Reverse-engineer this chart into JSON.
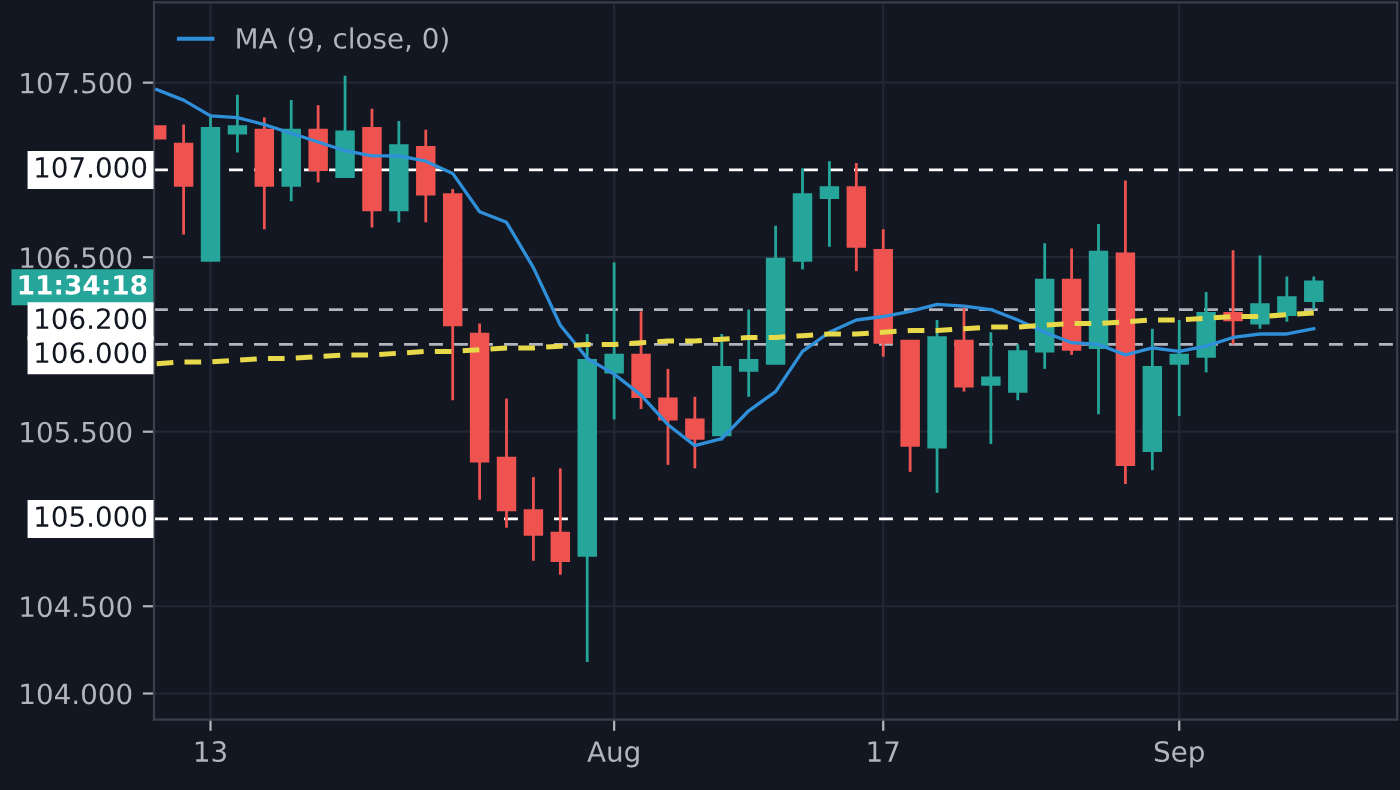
{
  "chart_data": {
    "type": "candlestick",
    "categories": [
      null,
      null,
      "13",
      null,
      null,
      null,
      null,
      null,
      null,
      null,
      null,
      null,
      null,
      null,
      null,
      null,
      null,
      "Aug",
      null,
      null,
      null,
      null,
      null,
      null,
      null,
      null,
      null,
      "17",
      null,
      null,
      null,
      null,
      null,
      null,
      null,
      null,
      null,
      null,
      "Sep",
      null,
      null,
      null,
      null,
      null
    ],
    "ohlc": [
      [
        107.25,
        107.25,
        107.18,
        107.18
      ],
      [
        107.15,
        107.26,
        106.63,
        106.91
      ],
      [
        106.48,
        107.32,
        106.48,
        107.24
      ],
      [
        107.21,
        107.43,
        107.1,
        107.25
      ],
      [
        107.23,
        107.3,
        106.66,
        106.91
      ],
      [
        106.91,
        107.4,
        106.82,
        107.23
      ],
      [
        107.23,
        107.37,
        106.93,
        107.0
      ],
      [
        106.96,
        107.54,
        106.96,
        107.22
      ],
      [
        107.24,
        107.35,
        106.67,
        106.77
      ],
      [
        106.77,
        107.28,
        106.7,
        107.14
      ],
      [
        107.13,
        107.23,
        106.7,
        106.86
      ],
      [
        106.86,
        106.89,
        105.68,
        106.11
      ],
      [
        106.06,
        106.12,
        105.11,
        105.33
      ],
      [
        105.35,
        105.69,
        104.95,
        105.05
      ],
      [
        105.05,
        105.24,
        104.76,
        104.91
      ],
      [
        104.92,
        105.29,
        104.68,
        104.76
      ],
      [
        104.79,
        106.06,
        104.18,
        105.91
      ],
      [
        105.84,
        106.47,
        105.57,
        105.94
      ],
      [
        105.94,
        106.19,
        105.63,
        105.7
      ],
      [
        105.69,
        105.86,
        105.31,
        105.57
      ],
      [
        105.57,
        105.7,
        105.29,
        105.46
      ],
      [
        105.48,
        106.06,
        105.45,
        105.87
      ],
      [
        105.85,
        106.2,
        105.7,
        105.91
      ],
      [
        105.89,
        106.68,
        105.89,
        106.49
      ],
      [
        106.48,
        107.01,
        106.43,
        106.86
      ],
      [
        106.84,
        107.05,
        106.56,
        106.9
      ],
      [
        106.9,
        107.04,
        106.42,
        106.56
      ],
      [
        106.54,
        106.66,
        105.93,
        106.01
      ],
      [
        106.02,
        106.02,
        105.27,
        105.42
      ],
      [
        105.41,
        106.14,
        105.15,
        106.04
      ],
      [
        106.02,
        106.21,
        105.73,
        105.76
      ],
      [
        105.77,
        106.07,
        105.43,
        105.81
      ],
      [
        105.73,
        106.0,
        105.68,
        105.96
      ],
      [
        105.96,
        106.58,
        105.86,
        106.37
      ],
      [
        106.37,
        106.55,
        105.94,
        105.97
      ],
      [
        105.98,
        106.69,
        105.6,
        106.53
      ],
      [
        106.52,
        106.94,
        105.2,
        105.31
      ],
      [
        105.39,
        106.09,
        105.28,
        105.87
      ],
      [
        105.89,
        106.14,
        105.59,
        105.94
      ],
      [
        105.93,
        106.3,
        105.84,
        106.18
      ],
      [
        106.18,
        106.54,
        106.0,
        106.14
      ],
      [
        106.12,
        106.51,
        106.09,
        106.23
      ],
      [
        106.17,
        106.39,
        106.13,
        106.27
      ],
      [
        106.25,
        106.39,
        106.2,
        106.36
      ]
    ],
    "colors": [
      "#ef5350",
      "#ef5350",
      "#26a69a",
      "#26a69a",
      "#ef5350",
      "#26a69a",
      "#ef5350",
      "#26a69a",
      "#ef5350",
      "#26a69a",
      "#ef5350",
      "#ef5350",
      "#ef5350",
      "#ef5350",
      "#ef5350",
      "#ef5350",
      "#26a69a",
      "#26a69a",
      "#ef5350",
      "#ef5350",
      "#ef5350",
      "#26a69a",
      "#26a69a",
      "#26a69a",
      "#26a69a",
      "#26a69a",
      "#ef5350",
      "#ef5350",
      "#ef5350",
      "#26a69a",
      "#ef5350",
      "#26a69a",
      "#26a69a",
      "#26a69a",
      "#ef5350",
      "#26a69a",
      "#ef5350",
      "#26a69a",
      "#26a69a",
      "#26a69a",
      "#ef5350",
      "#26a69a",
      "#26a69a",
      "#26a69a"
    ],
    "series": [
      {
        "name": "MA (9, close, 0)",
        "type": "line",
        "color": "#2f8fd8",
        "values": [
          107.46,
          107.4,
          107.31,
          107.3,
          107.26,
          107.21,
          107.16,
          107.11,
          107.08,
          107.08,
          107.05,
          106.98,
          106.76,
          106.7,
          106.44,
          106.11,
          105.92,
          105.83,
          105.71,
          105.54,
          105.42,
          105.46,
          105.62,
          105.73,
          105.96,
          106.07,
          106.14,
          106.16,
          106.19,
          106.23,
          106.22,
          106.2,
          106.14,
          106.07,
          106.01,
          106.0,
          105.94,
          105.98,
          105.96,
          105.99,
          106.04,
          106.06,
          106.06,
          106.09
        ]
      },
      {
        "type": "line",
        "color": "#e8d94a",
        "line_style": "dashed",
        "values": [
          105.89,
          105.9,
          105.9,
          105.91,
          105.92,
          105.92,
          105.93,
          105.94,
          105.94,
          105.95,
          105.96,
          105.96,
          105.97,
          105.98,
          105.98,
          105.99,
          106.0,
          106.0,
          106.01,
          106.02,
          106.02,
          106.03,
          106.04,
          106.04,
          106.05,
          106.06,
          106.06,
          106.07,
          106.08,
          106.08,
          106.09,
          106.1,
          106.1,
          106.11,
          106.12,
          106.12,
          106.13,
          106.14,
          106.14,
          106.15,
          106.16,
          106.16,
          106.17,
          106.18
        ]
      }
    ],
    "ylim": [
      103.85,
      107.96
    ],
    "yticks": [
      {
        "value": 104,
        "label": "104.000"
      },
      {
        "value": 104.5,
        "label": "104.500"
      },
      {
        "value": 105.5,
        "label": "105.500"
      },
      {
        "value": 106.5,
        "label": "106.500"
      },
      {
        "value": 107.5,
        "label": "107.500"
      }
    ],
    "ref_lines": [
      {
        "axis": "y",
        "value": 107,
        "label": "107.000",
        "color": "#ffffff",
        "line_style": "dashed"
      },
      {
        "axis": "y",
        "value": 106.2,
        "label": "106.200",
        "color": "#b2b5be",
        "line_style": "dashed"
      },
      {
        "axis": "y",
        "value": 106,
        "label": "106.000",
        "color": "#b2b5be",
        "line_style": "dashed"
      },
      {
        "axis": "y",
        "value": 105,
        "label": "105.000",
        "color": "#ffffff",
        "line_style": "dashed"
      }
    ],
    "annotations": [
      "11:34:18"
    ],
    "grid": true,
    "legend": "top left"
  }
}
